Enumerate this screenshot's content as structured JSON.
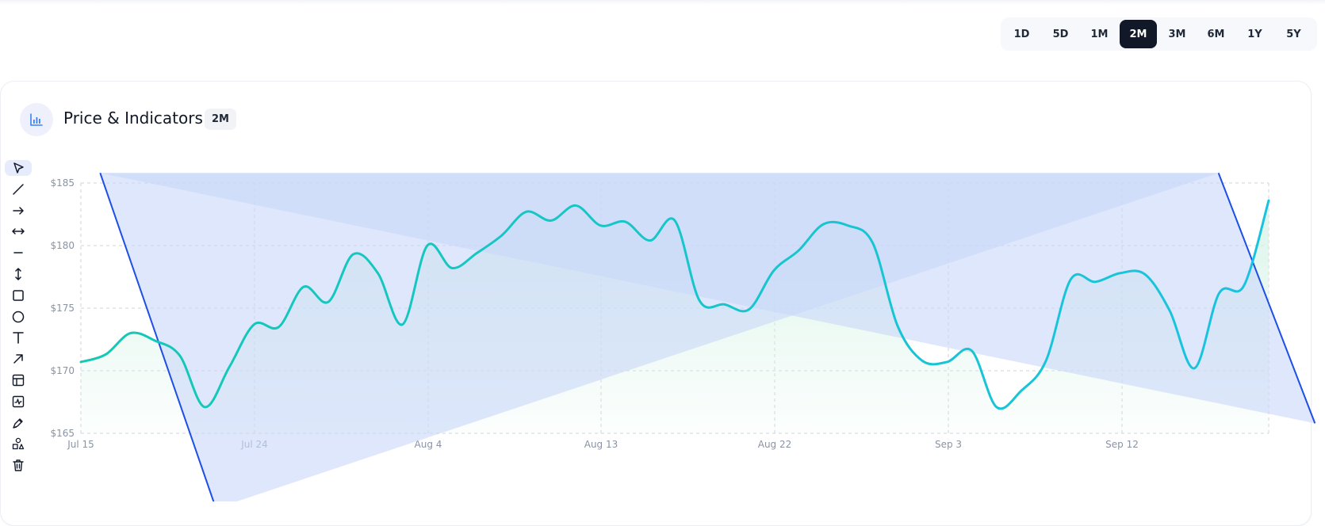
{
  "range_selector": {
    "options": [
      "1D",
      "5D",
      "1M",
      "2M",
      "3M",
      "6M",
      "1Y",
      "5Y"
    ],
    "selected": "2M"
  },
  "card": {
    "title": "Price & Indicators",
    "period_badge": "2M",
    "icon": "bar-chart-icon"
  },
  "toolbar": {
    "tools": [
      "cursor-icon",
      "trend-line-icon",
      "arrow-right-icon",
      "double-arrow-icon",
      "horizontal-line-icon",
      "vertical-range-icon",
      "rectangle-icon",
      "circle-icon",
      "text-icon",
      "arrow-diagonal-icon",
      "layout-icon",
      "indicator-icon",
      "pen-icon",
      "shapes-icon",
      "trash-icon"
    ],
    "active": "cursor-icon"
  },
  "colors": {
    "line": "#14c8b4",
    "line_end": "#19c3e0",
    "area": "#d6f3e6",
    "drawing_fill": "#c9d8f8",
    "drawing_stroke": "#1d4ee6",
    "active_range": "#111827"
  },
  "chart_data": {
    "type": "area",
    "x_ticks": [
      "Jul 15",
      "Jul 24",
      "Aug 4",
      "Aug 13",
      "Aug 22",
      "Sep 3",
      "Sep 12"
    ],
    "y_ticks": [
      "$165",
      "$170",
      "$175",
      "$180",
      "$185"
    ],
    "ylim": [
      165,
      185
    ],
    "grid": true,
    "series": [
      {
        "values": [
          170.7,
          171.3,
          173.0,
          172.4,
          171.2,
          167.1,
          170.3,
          173.7,
          173.5,
          176.7,
          175.5,
          179.3,
          177.8,
          173.7,
          180.0,
          178.2,
          179.4,
          180.8,
          182.7,
          182.0,
          183.2,
          181.6,
          181.9,
          180.4,
          182.0,
          175.6,
          175.3,
          174.9,
          178.0,
          179.6,
          181.7,
          181.6,
          180.2,
          173.6,
          170.8,
          170.7,
          171.6,
          167.1,
          168.4,
          170.8,
          177.3,
          177.1,
          177.8,
          177.7,
          174.8,
          170.2,
          176.2,
          176.8,
          183.6
        ]
      }
    ],
    "drawings": [
      {
        "type": "triangle",
        "vertices": [
          [
            "Jul 16",
            185.8
          ],
          [
            "Jul 22",
            159.0
          ],
          [
            "Sep 17",
            185.8
          ]
        ]
      },
      {
        "type": "triangle",
        "vertices": [
          [
            "Jul 16",
            185.8
          ],
          [
            "Sep 17",
            185.8
          ],
          [
            "Sep 22",
            165.8
          ]
        ]
      }
    ]
  }
}
